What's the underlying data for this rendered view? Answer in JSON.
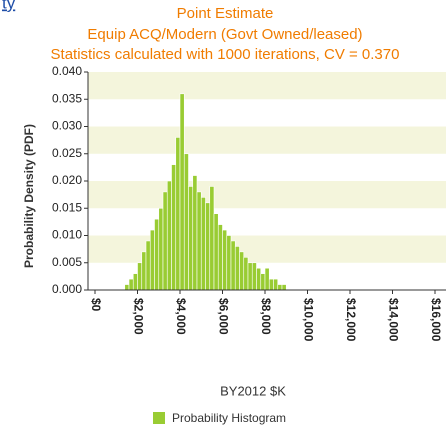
{
  "header_fragment": "ty",
  "chart_data": {
    "type": "histogram",
    "title": "Point Estimate",
    "subtitle": "Equip ACQ/Modern (Govt Owned/leased)",
    "note": "Statistics calculated with 1000 iterations, CV = 0.370",
    "x_label": "BY2012 $K",
    "y_label": "Probability Density (PDF)",
    "bins": [
      1400,
      1600,
      1800,
      2000,
      2200,
      2400,
      2600,
      2800,
      3000,
      3200,
      3400,
      3600,
      3800,
      4000,
      4200,
      4400,
      4600,
      4800,
      5000,
      5200,
      5400,
      5600,
      5800,
      6000,
      6200,
      6400,
      6600,
      6800,
      7000,
      7200,
      7400,
      7600,
      7800,
      8000,
      8200,
      8400,
      8600,
      8800,
      9000
    ],
    "series": [
      {
        "name": "Probability Histogram",
        "color": "#99cc33",
        "values": [
          0.001,
          0.002,
          0.003,
          0.005,
          0.007,
          0.009,
          0.011,
          0.013,
          0.015,
          0.018,
          0.02,
          0.023,
          0.028,
          0.036,
          0.025,
          0.019,
          0.021,
          0.018,
          0.017,
          0.016,
          0.019,
          0.014,
          0.012,
          0.011,
          0.01,
          0.009,
          0.008,
          0.007,
          0.006,
          0.005,
          0.005,
          0.004,
          0.003,
          0.004,
          0.002,
          0.002,
          0.001,
          0.001
        ]
      }
    ],
    "xlim": [
      0,
      16000
    ],
    "xticks": [
      {
        "value": 0,
        "label": "$0"
      },
      {
        "value": 2000,
        "label": "$2,000"
      },
      {
        "value": 4000,
        "label": "$4,000"
      },
      {
        "value": 6000,
        "label": "$6,000"
      },
      {
        "value": 8000,
        "label": "$8,000"
      },
      {
        "value": 10000,
        "label": "$10,000"
      },
      {
        "value": 12000,
        "label": "$12,000"
      },
      {
        "value": 14000,
        "label": "$14,000"
      },
      {
        "value": 16000,
        "label": "$16,000"
      }
    ],
    "ylim": [
      0,
      0.04
    ],
    "yticks": [
      {
        "value": 0,
        "label": "0.000"
      },
      {
        "value": 0.005,
        "label": "0.005"
      },
      {
        "value": 0.01,
        "label": "0.010"
      },
      {
        "value": 0.015,
        "label": "0.015"
      },
      {
        "value": 0.02,
        "label": "0.020"
      },
      {
        "value": 0.025,
        "label": "0.025"
      },
      {
        "value": 0.03,
        "label": "0.030"
      },
      {
        "value": 0.035,
        "label": "0.035"
      },
      {
        "value": 0.04,
        "label": "0.040"
      }
    ],
    "band_color": "#f4f5dc"
  }
}
